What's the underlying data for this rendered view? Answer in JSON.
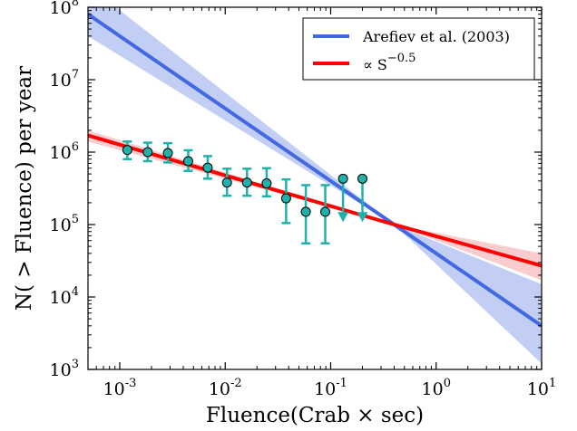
{
  "chart_data": {
    "type": "scatter",
    "xlabel": "Fluence(Crab × sec)",
    "ylabel": "N( > Fluence) per year",
    "xscale": "log",
    "yscale": "log",
    "xlim": [
      0.0005,
      10
    ],
    "ylim": [
      1000,
      100000000
    ],
    "x_ticks": [
      {
        "value": 0.001,
        "base": "10",
        "exp": "-3"
      },
      {
        "value": 0.01,
        "base": "10",
        "exp": "-2"
      },
      {
        "value": 0.1,
        "base": "10",
        "exp": "-1"
      },
      {
        "value": 1,
        "base": "10",
        "exp": "0"
      },
      {
        "value": 10,
        "base": "10",
        "exp": "1"
      }
    ],
    "y_ticks": [
      {
        "value": 1000,
        "base": "10",
        "exp": "3"
      },
      {
        "value": 10000,
        "base": "10",
        "exp": "4"
      },
      {
        "value": 100000,
        "base": "10",
        "exp": "5"
      },
      {
        "value": 1000000,
        "base": "10",
        "exp": "6"
      },
      {
        "value": 10000000,
        "base": "10",
        "exp": "7"
      },
      {
        "value": 100000000,
        "base": "10",
        "exp": "8"
      }
    ],
    "legend": {
      "position": "top-right",
      "entries": [
        {
          "label": "Arefiev et al. (2003)",
          "color": "#4169e1"
        },
        {
          "label_prefix": "∝ S",
          "label_exp": "−0.5",
          "color": "#ff0000"
        }
      ]
    },
    "series": [
      {
        "name": "Arefiev et al. (2003)",
        "kind": "line",
        "color": "#4169e1",
        "band_color": "#b8c6f2",
        "x": [
          0.0005,
          0.4,
          10
        ],
        "y": [
          80000000,
          100000,
          4000
        ],
        "band_upper": [
          200000000,
          100000,
          15000
        ],
        "band_lower": [
          40000000,
          100000,
          1200
        ]
      },
      {
        "name": "∝ S^−0.5",
        "kind": "line",
        "color": "#ff0000",
        "band_color": "#f8c4c4",
        "x": [
          0.0005,
          0.4,
          10
        ],
        "y": [
          1700000,
          100000,
          27000
        ],
        "band_upper": [
          2000000,
          100000,
          40000
        ],
        "band_lower": [
          1400000,
          100000,
          17000
        ]
      },
      {
        "name": "",
        "kind": "points",
        "marker_color": "#20b2aa",
        "errorbar_color": "#20b2aa",
        "points": [
          {
            "x": 0.00118,
            "y": 1070000,
            "err_low": 800000,
            "err_high": 1400000
          },
          {
            "x": 0.00184,
            "y": 1000000,
            "err_low": 750000,
            "err_high": 1350000
          },
          {
            "x": 0.00286,
            "y": 970000,
            "err_low": 720000,
            "err_high": 1330000
          },
          {
            "x": 0.00446,
            "y": 750000,
            "err_low": 550000,
            "err_high": 1060000
          },
          {
            "x": 0.00682,
            "y": 610000,
            "err_low": 430000,
            "err_high": 880000
          },
          {
            "x": 0.0104,
            "y": 380000,
            "err_low": 250000,
            "err_high": 590000
          },
          {
            "x": 0.0161,
            "y": 380000,
            "err_low": 250000,
            "err_high": 590000
          },
          {
            "x": 0.0247,
            "y": 370000,
            "err_low": 245000,
            "err_high": 600000
          },
          {
            "x": 0.0378,
            "y": 230000,
            "err_low": 105000,
            "err_high": 420000
          },
          {
            "x": 0.0581,
            "y": 150000,
            "err_low": 55000,
            "err_high": 350000
          },
          {
            "x": 0.0888,
            "y": 150000,
            "err_low": 55000,
            "err_high": 350000
          }
        ]
      },
      {
        "name": "",
        "kind": "upper_limits",
        "marker_color": "#20b2aa",
        "points": [
          {
            "x": 0.131,
            "y": 430000,
            "arrow_to": 125000
          },
          {
            "x": 0.2,
            "y": 430000,
            "arrow_to": 125000
          }
        ]
      }
    ]
  }
}
